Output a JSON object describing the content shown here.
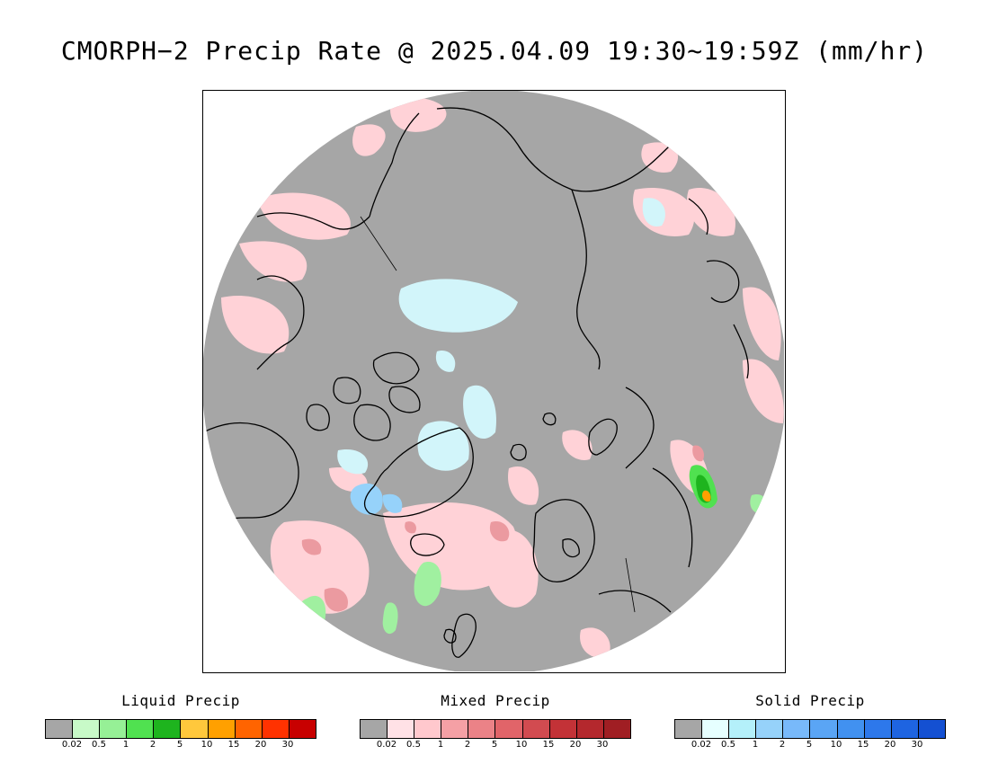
{
  "title": "CMORPH−2 Precip Rate @ 2025.04.09 19:30~19:59Z (mm/hr)",
  "legends": [
    {
      "title": "Liquid Precip",
      "colors": [
        "#a6a6a6",
        "#c8fac8",
        "#96f096",
        "#50e150",
        "#1eb41e",
        "#ffc83c",
        "#ffa000",
        "#ff6400",
        "#ff3200",
        "#c80000"
      ],
      "ticks": [
        "0.02",
        "0.5",
        "1",
        "2",
        "5",
        "10",
        "15",
        "20",
        "30"
      ]
    },
    {
      "title": "Mixed Precip",
      "colors": [
        "#a6a6a6",
        "#ffe1e6",
        "#ffc8cd",
        "#f5a0a5",
        "#eb8287",
        "#e16469",
        "#d24b50",
        "#c33237",
        "#b4282d",
        "#a01e23"
      ],
      "ticks": [
        "0.02",
        "0.5",
        "1",
        "2",
        "5",
        "10",
        "15",
        "20",
        "30"
      ]
    },
    {
      "title": "Solid Precip",
      "colors": [
        "#a6a6a6",
        "#e6ffff",
        "#b4f0fa",
        "#96d2fa",
        "#78b9fa",
        "#5aa5f5",
        "#4191f0",
        "#2d78eb",
        "#1e64e1",
        "#1450d2"
      ],
      "ticks": [
        "0.02",
        "0.5",
        "1",
        "2",
        "5",
        "10",
        "15",
        "20",
        "30"
      ]
    }
  ]
}
